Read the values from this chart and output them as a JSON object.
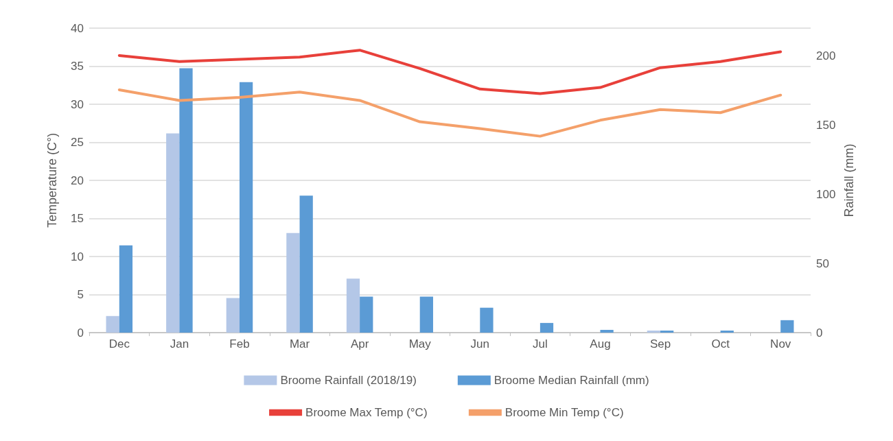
{
  "chart_data": {
    "type": "bar",
    "xlabel": null,
    "ylabel": "Temperature (C°)",
    "y2label": "Rainfall (mm)",
    "categories": [
      "Dec",
      "Jan",
      "Feb",
      "Mar",
      "Apr",
      "May",
      "Jun",
      "Jul",
      "Aug",
      "Sep",
      "Oct",
      "Nov"
    ],
    "series": [
      {
        "name": "Broome Rainfall (2018/19)",
        "axis": "y2",
        "color": "#b4c7e7",
        "values": [
          12,
          144,
          25,
          72,
          39,
          0,
          0,
          null,
          0,
          1.5,
          null,
          0
        ]
      },
      {
        "name": "Broome Median Rainfall (mm)",
        "axis": "y2",
        "color": "#5b9bd5",
        "values": [
          63,
          191,
          181,
          99,
          26,
          26,
          18,
          7,
          2,
          1.5,
          1.5,
          9
        ]
      },
      {
        "name": "Broome Max Temp (°C)",
        "type": "line",
        "color": "#e8403a",
        "values": [
          36.4,
          35.6,
          35.9,
          36.2,
          37.1,
          34.7,
          32.0,
          31.4,
          32.2,
          34.8,
          35.6,
          36.9
        ]
      },
      {
        "name": "Broome Min Temp (°C)",
        "type": "line",
        "color": "#f4a06a",
        "values": [
          31.9,
          30.5,
          30.9,
          31.6,
          30.5,
          27.7,
          26.8,
          25.8,
          27.9,
          29.3,
          28.9,
          31.2
        ]
      }
    ],
    "ylim": [
      0,
      40
    ],
    "yticks": [
      0,
      5,
      10,
      15,
      20,
      25,
      30,
      35,
      40
    ],
    "y2lim": [
      0,
      220
    ],
    "y2ticks": [
      0,
      50,
      100,
      150,
      200
    ],
    "grid": "y",
    "legend": "bottom",
    "marker": "none",
    "line_style": "solid"
  }
}
